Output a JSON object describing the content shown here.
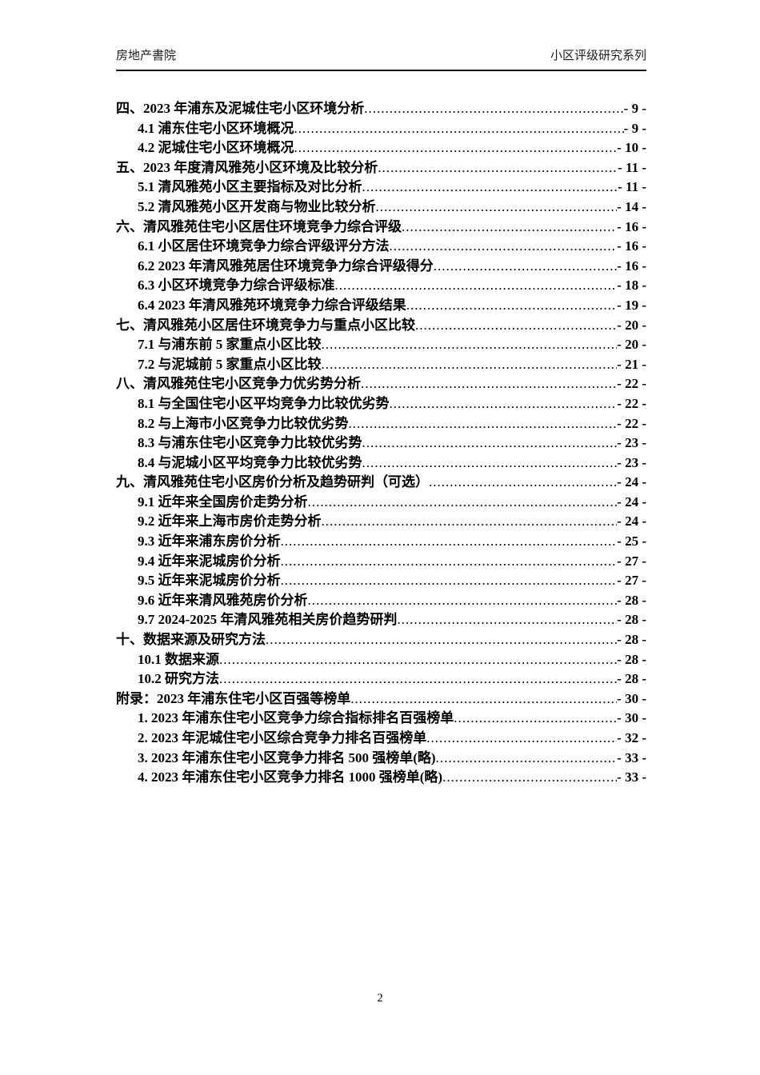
{
  "header": {
    "left_title": "房地产書院",
    "right_title": "小区评级研究系列"
  },
  "toc": {
    "entries": [
      {
        "level": 1,
        "title": "四、2023 年浦东及泥城住宅小区环境分析",
        "page": "- 9 -"
      },
      {
        "level": 2,
        "title": "4.1 浦东住宅小区环境概况",
        "page": "- 9 -"
      },
      {
        "level": 2,
        "title": "4.2 泥城住宅小区环境概况",
        "page": "- 10 -"
      },
      {
        "level": 1,
        "title": "五、2023 年度清风雅苑小区环境及比较分析",
        "page": "- 11 -"
      },
      {
        "level": 2,
        "title": "5.1 清风雅苑小区主要指标及对比分析",
        "page": "- 11 -"
      },
      {
        "level": 2,
        "title": "5.2 清风雅苑小区开发商与物业比较分析",
        "page": "- 14 -"
      },
      {
        "level": 1,
        "title": "六、清风雅苑住宅小区居住环境竞争力综合评级",
        "page": "- 16 -"
      },
      {
        "level": 2,
        "title": "6.1 小区居住环境竞争力综合评级评分方法",
        "page": "- 16 -"
      },
      {
        "level": 2,
        "title": "6.2 2023 年清风雅苑居住环境竞争力综合评级得分",
        "page": "- 16 -"
      },
      {
        "level": 2,
        "title": "6.3 小区环境竞争力综合评级标准",
        "page": "- 18 -"
      },
      {
        "level": 2,
        "title": "6.4 2023 年清风雅苑环境竞争力综合评级结果",
        "page": "- 19 -"
      },
      {
        "level": 1,
        "title": "七、清风雅苑小区居住环境竞争力与重点小区比较",
        "page": "- 20 -"
      },
      {
        "level": 2,
        "title": "7.1 与浦东前 5 家重点小区比较",
        "page": "- 20 -"
      },
      {
        "level": 2,
        "title": "7.2 与泥城前 5 家重点小区比较",
        "page": "- 21 -"
      },
      {
        "level": 1,
        "title": "八、清风雅苑住宅小区竞争力优劣势分析",
        "page": "- 22 -"
      },
      {
        "level": 2,
        "title": "8.1 与全国住宅小区平均竞争力比较优劣势",
        "page": "- 22 -"
      },
      {
        "level": 2,
        "title": "8.2 与上海市小区竞争力比较优劣势",
        "page": "- 22 -"
      },
      {
        "level": 2,
        "title": "8.3 与浦东住宅小区竞争力比较优劣势",
        "page": "- 23 -"
      },
      {
        "level": 2,
        "title": "8.4 与泥城小区平均竞争力比较优劣势",
        "page": "- 23 -"
      },
      {
        "level": 1,
        "title": "九、清风雅苑住宅小区房价分析及趋势研判（可选）",
        "page": "- 24 -"
      },
      {
        "level": 2,
        "title": "9.1 近年来全国房价走势分析",
        "page": "- 24 -"
      },
      {
        "level": 2,
        "title": "9.2 近年来上海市房价走势分析",
        "page": "- 24 -"
      },
      {
        "level": 2,
        "title": "9.3 近年来浦东房价分析",
        "page": "- 25 -"
      },
      {
        "level": 2,
        "title": "9.4 近年来泥城房价分析",
        "page": "- 27 -"
      },
      {
        "level": 2,
        "title": "9.5 近年来泥城房价分析",
        "page": "- 27 -"
      },
      {
        "level": 2,
        "title": "9.6 近年来清风雅苑房价分析",
        "page": "- 28 -"
      },
      {
        "level": 2,
        "title": "9.7 2024-2025 年清风雅苑相关房价趋势研判",
        "page": "- 28 -"
      },
      {
        "level": 1,
        "title": "十、数据来源及研究方法",
        "page": "- 28 -"
      },
      {
        "level": 2,
        "title": "10.1 数据来源",
        "page": "- 28 -"
      },
      {
        "level": 2,
        "title": "10.2 研究方法",
        "page": "- 28 -"
      },
      {
        "level": 1,
        "title": "附录：2023 年浦东住宅小区百强等榜单",
        "page": "- 30 -"
      },
      {
        "level": 2,
        "title": "1. 2023 年浦东住宅小区竞争力综合指标排名百强榜单",
        "page": "- 30 -"
      },
      {
        "level": 2,
        "title": "2. 2023 年泥城住宅小区综合竞争力排名百强榜单",
        "page": "- 32 -"
      },
      {
        "level": 2,
        "title": "3. 2023 年浦东住宅小区竞争力排名 500 强榜单(略)",
        "page": "- 33 -"
      },
      {
        "level": 2,
        "title": "4. 2023 年浦东住宅小区竞争力排名 1000 强榜单(略)",
        "page": "- 33 -"
      }
    ]
  },
  "footer": {
    "page_number": "2"
  }
}
